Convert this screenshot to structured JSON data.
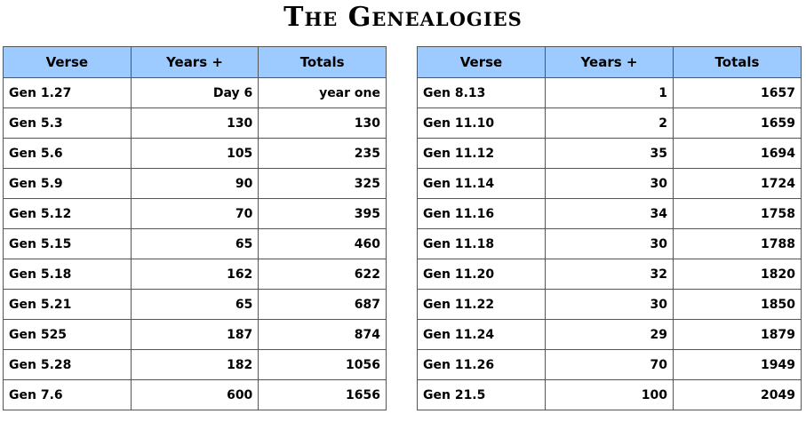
{
  "title": "The Genealogies",
  "left_table": {
    "headers": [
      "Verse",
      "Years +",
      "Totals"
    ],
    "rows": [
      [
        "Gen 1.27",
        "Day 6",
        "year one"
      ],
      [
        "Gen 5.3",
        "130",
        "130"
      ],
      [
        "Gen 5.6",
        "105",
        "235"
      ],
      [
        "Gen 5.9",
        "90",
        "325"
      ],
      [
        "Gen 5.12",
        "70",
        "395"
      ],
      [
        "Gen 5.15",
        "65",
        "460"
      ],
      [
        "Gen 5.18",
        "162",
        "622"
      ],
      [
        "Gen 5.21",
        "65",
        "687"
      ],
      [
        "Gen 525",
        "187",
        "874"
      ],
      [
        "Gen 5.28",
        "182",
        "1056"
      ],
      [
        "Gen 7.6",
        "600",
        "1656"
      ]
    ]
  },
  "right_table": {
    "headers": [
      "Verse",
      "Years +",
      "Totals"
    ],
    "rows": [
      [
        "Gen 8.13",
        "1",
        "1657"
      ],
      [
        "Gen 11.10",
        "2",
        "1659"
      ],
      [
        "Gen 11.12",
        "35",
        "1694"
      ],
      [
        "Gen 11.14",
        "30",
        "1724"
      ],
      [
        "Gen 11.16",
        "34",
        "1758"
      ],
      [
        "Gen 11.18",
        "30",
        "1788"
      ],
      [
        "Gen 11.20",
        "32",
        "1820"
      ],
      [
        "Gen 11.22",
        "30",
        "1850"
      ],
      [
        "Gen 11.24",
        "29",
        "1879"
      ],
      [
        "Gen 11.26",
        "70",
        "1949"
      ],
      [
        "Gen 21.5",
        "100",
        "2049"
      ]
    ]
  },
  "colors": {
    "header_bg": "#9ecbff",
    "border": "#555555",
    "text": "#000000"
  }
}
